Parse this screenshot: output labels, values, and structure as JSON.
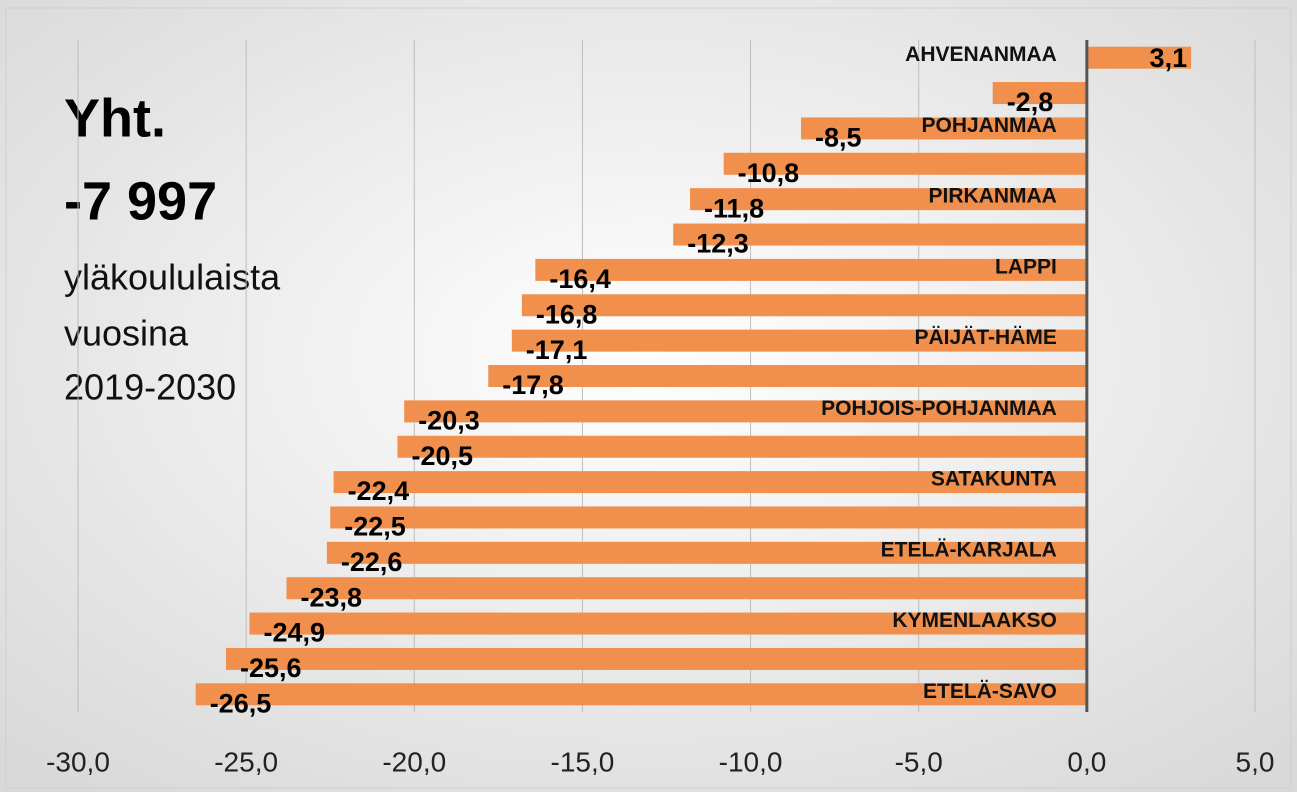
{
  "chart_data": {
    "type": "hbar",
    "annotations": [
      "Yht.",
      "-7 997",
      "yläkoululaista",
      "vuosina",
      "2019-2030"
    ],
    "categories": [
      "AHVENANMAA",
      null,
      "POHJANMAA",
      null,
      "PIRKANMAA",
      null,
      "LAPPI",
      null,
      "PÄIJÄT-HÄME",
      null,
      "POHJOIS-POHJANMAA",
      null,
      "SATAKUNTA",
      null,
      "ETELÄ-KARJALA",
      null,
      "KYMENLAAKSO",
      null,
      "ETELÄ-SAVO"
    ],
    "values": [
      3.1,
      -2.8,
      -8.5,
      -10.8,
      -11.8,
      -12.3,
      -16.4,
      -16.8,
      -17.1,
      -17.8,
      -20.3,
      -20.5,
      -22.4,
      -22.5,
      -22.6,
      -23.8,
      -24.9,
      -25.6,
      -26.5
    ],
    "value_labels": [
      "3,1",
      "-2,8",
      "-8,5",
      "-10,8",
      "-11,8",
      "-12,3",
      "-16,4",
      "-16,8",
      "-17,1",
      "-17,8",
      "-20,3",
      "-20,5",
      "-22,4",
      "-22,5",
      "-22,6",
      "-23,8",
      "-24,9",
      "-25,6",
      "-26,5"
    ],
    "color": "#f0904c",
    "xlim": [
      -30,
      5
    ],
    "xticks": [
      {
        "value": -30,
        "label": "-30,0"
      },
      {
        "value": -25,
        "label": "-25,0"
      },
      {
        "value": -20,
        "label": "-20,0"
      },
      {
        "value": -15,
        "label": "-15,0"
      },
      {
        "value": -10,
        "label": "-10,0"
      },
      {
        "value": -5,
        "label": "-5,0"
      },
      {
        "value": 0,
        "label": "0,0"
      },
      {
        "value": 5,
        "label": "5,0"
      }
    ],
    "grid": true
  }
}
